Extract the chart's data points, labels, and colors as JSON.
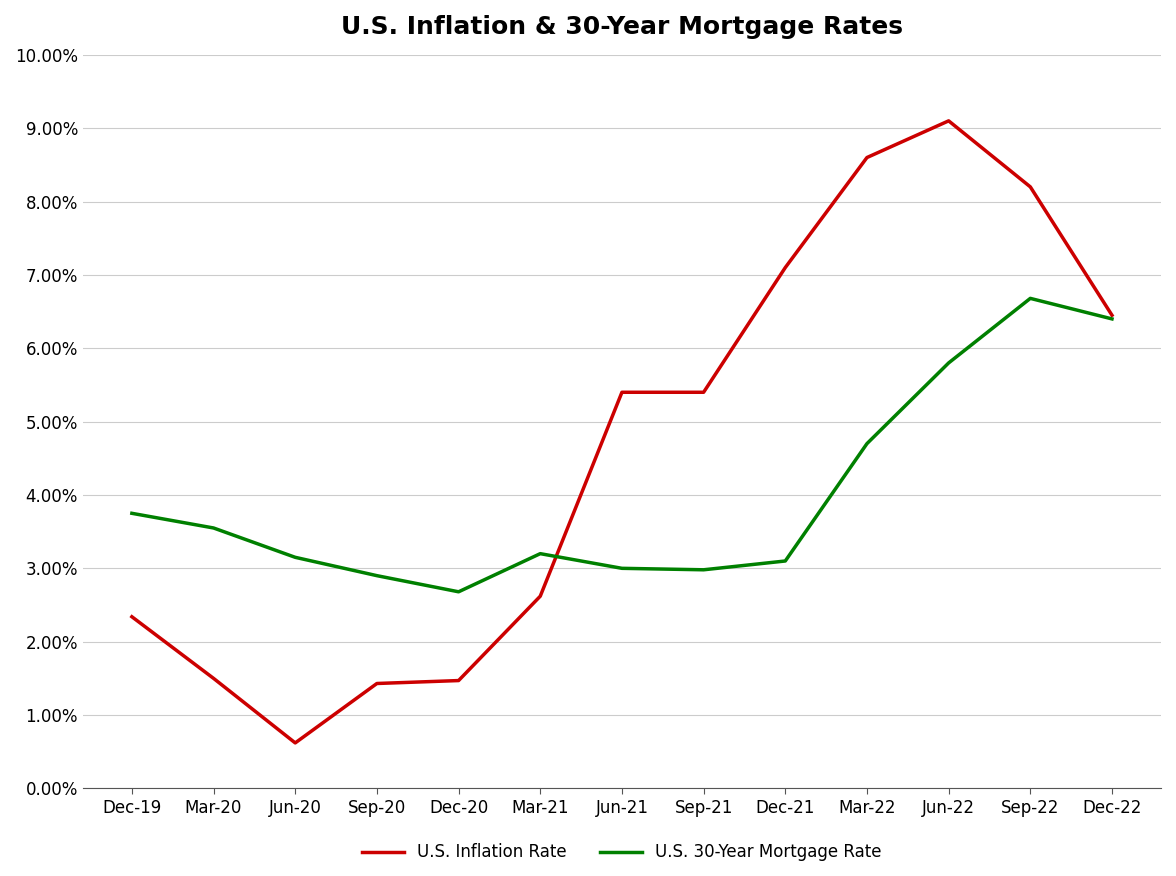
{
  "title": "U.S. Inflation & 30-Year Mortgage Rates",
  "x_labels": [
    "Dec-19",
    "Mar-20",
    "Jun-20",
    "Sep-20",
    "Dec-20",
    "Mar-21",
    "Jun-21",
    "Sep-21",
    "Dec-21",
    "Mar-22",
    "Jun-22",
    "Sep-22",
    "Dec-22"
  ],
  "inflation_rate": [
    0.0234,
    0.015,
    0.0062,
    0.0143,
    0.0147,
    0.0262,
    0.054,
    0.054,
    0.071,
    0.086,
    0.091,
    0.082,
    0.0645
  ],
  "mortgage_rate": [
    0.0375,
    0.0355,
    0.0315,
    0.029,
    0.0268,
    0.032,
    0.03,
    0.0298,
    0.031,
    0.047,
    0.058,
    0.0668,
    0.064
  ],
  "inflation_color": "#cc0000",
  "mortgage_color": "#008000",
  "line_width": 2.5,
  "ylim": [
    0.0,
    0.1
  ],
  "yticks": [
    0.0,
    0.01,
    0.02,
    0.03,
    0.04,
    0.05,
    0.06,
    0.07,
    0.08,
    0.09,
    0.1
  ],
  "title_fontsize": 18,
  "tick_fontsize": 12,
  "legend_fontsize": 12,
  "grid_color": "#cccccc",
  "background_color": "#ffffff",
  "legend_labels": [
    "U.S. Inflation Rate",
    "U.S. 30-Year Mortgage Rate"
  ]
}
